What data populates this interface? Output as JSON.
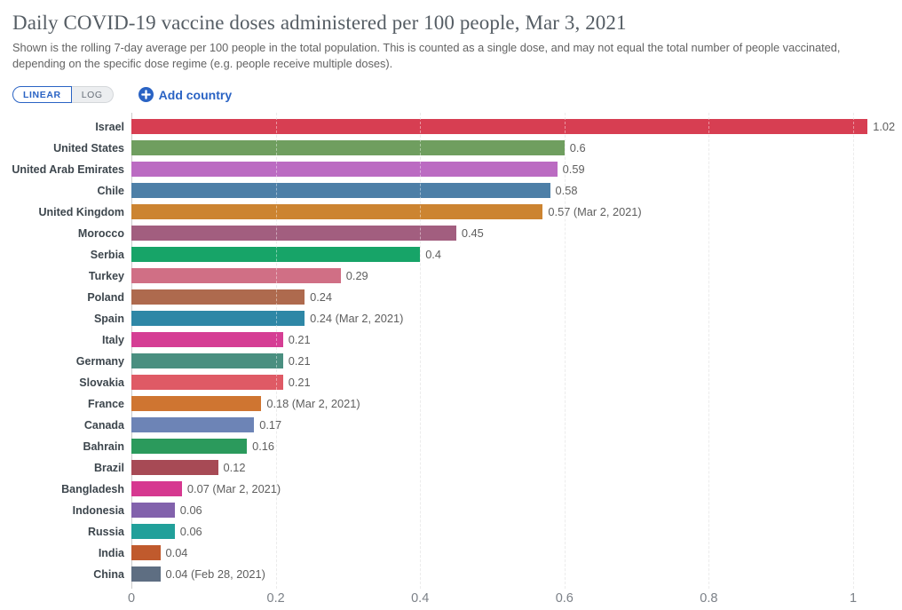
{
  "header": {
    "title": "Daily COVID-19 vaccine doses administered per 100 people, Mar 3, 2021",
    "subtitle": "Shown is the rolling 7-day average per 100 people in the total population. This is counted as a single dose, and may not equal the total number of people vaccinated, depending on the specific dose regime (e.g. people receive multiple doses)."
  },
  "controls": {
    "linear_label": "LINEAR",
    "log_label": "LOG",
    "add_country_label": "Add country"
  },
  "colors": {
    "accent_blue": "#2a63c4",
    "title_gray": "#555d64",
    "gridline": "#dcdcdc"
  },
  "chart_data": {
    "type": "bar",
    "orientation": "horizontal",
    "title": "Daily COVID-19 vaccine doses administered per 100 people, Mar 3, 2021",
    "xlabel": "",
    "ylabel": "",
    "xlim": [
      0,
      1.05
    ],
    "grid": true,
    "legend": "none",
    "categories": [
      "Israel",
      "United States",
      "United Arab Emirates",
      "Chile",
      "United Kingdom",
      "Morocco",
      "Serbia",
      "Turkey",
      "Poland",
      "Spain",
      "Italy",
      "Germany",
      "Slovakia",
      "France",
      "Canada",
      "Bahrain",
      "Brazil",
      "Bangladesh",
      "Indonesia",
      "Russia",
      "India",
      "China"
    ],
    "values": [
      1.02,
      0.6,
      0.59,
      0.58,
      0.57,
      0.45,
      0.4,
      0.29,
      0.24,
      0.24,
      0.21,
      0.21,
      0.21,
      0.18,
      0.17,
      0.16,
      0.12,
      0.07,
      0.06,
      0.06,
      0.04,
      0.04
    ],
    "value_labels": [
      "1.02",
      "0.6",
      "0.59",
      "0.58",
      "0.57 (Mar 2, 2021)",
      "0.45",
      "0.4",
      "0.29",
      "0.24",
      "0.24 (Mar 2, 2021)",
      "0.21",
      "0.21",
      "0.21",
      "0.18 (Mar 2, 2021)",
      "0.17",
      "0.16",
      "0.12",
      "0.07 (Mar 2, 2021)",
      "0.06",
      "0.06",
      "0.04",
      "0.04 (Feb 28, 2021)"
    ],
    "bar_colors": [
      "#d73e52",
      "#6f9e5f",
      "#bb6bc2",
      "#4d7fa7",
      "#cc8431",
      "#a25e7f",
      "#17a468",
      "#d06f85",
      "#ae6a4e",
      "#2e87a6",
      "#d53e94",
      "#4a8f80",
      "#df5a65",
      "#cf7531",
      "#6d84b6",
      "#2b9a5c",
      "#a74a55",
      "#d63890",
      "#8262ac",
      "#21a09a",
      "#c05a2d",
      "#5e6e82"
    ],
    "tick_values": [
      0,
      0.2,
      0.4,
      0.6,
      0.8,
      1
    ],
    "tick_labels": [
      "0",
      "0.2",
      "0.4",
      "0.6",
      "0.8",
      "1"
    ]
  }
}
